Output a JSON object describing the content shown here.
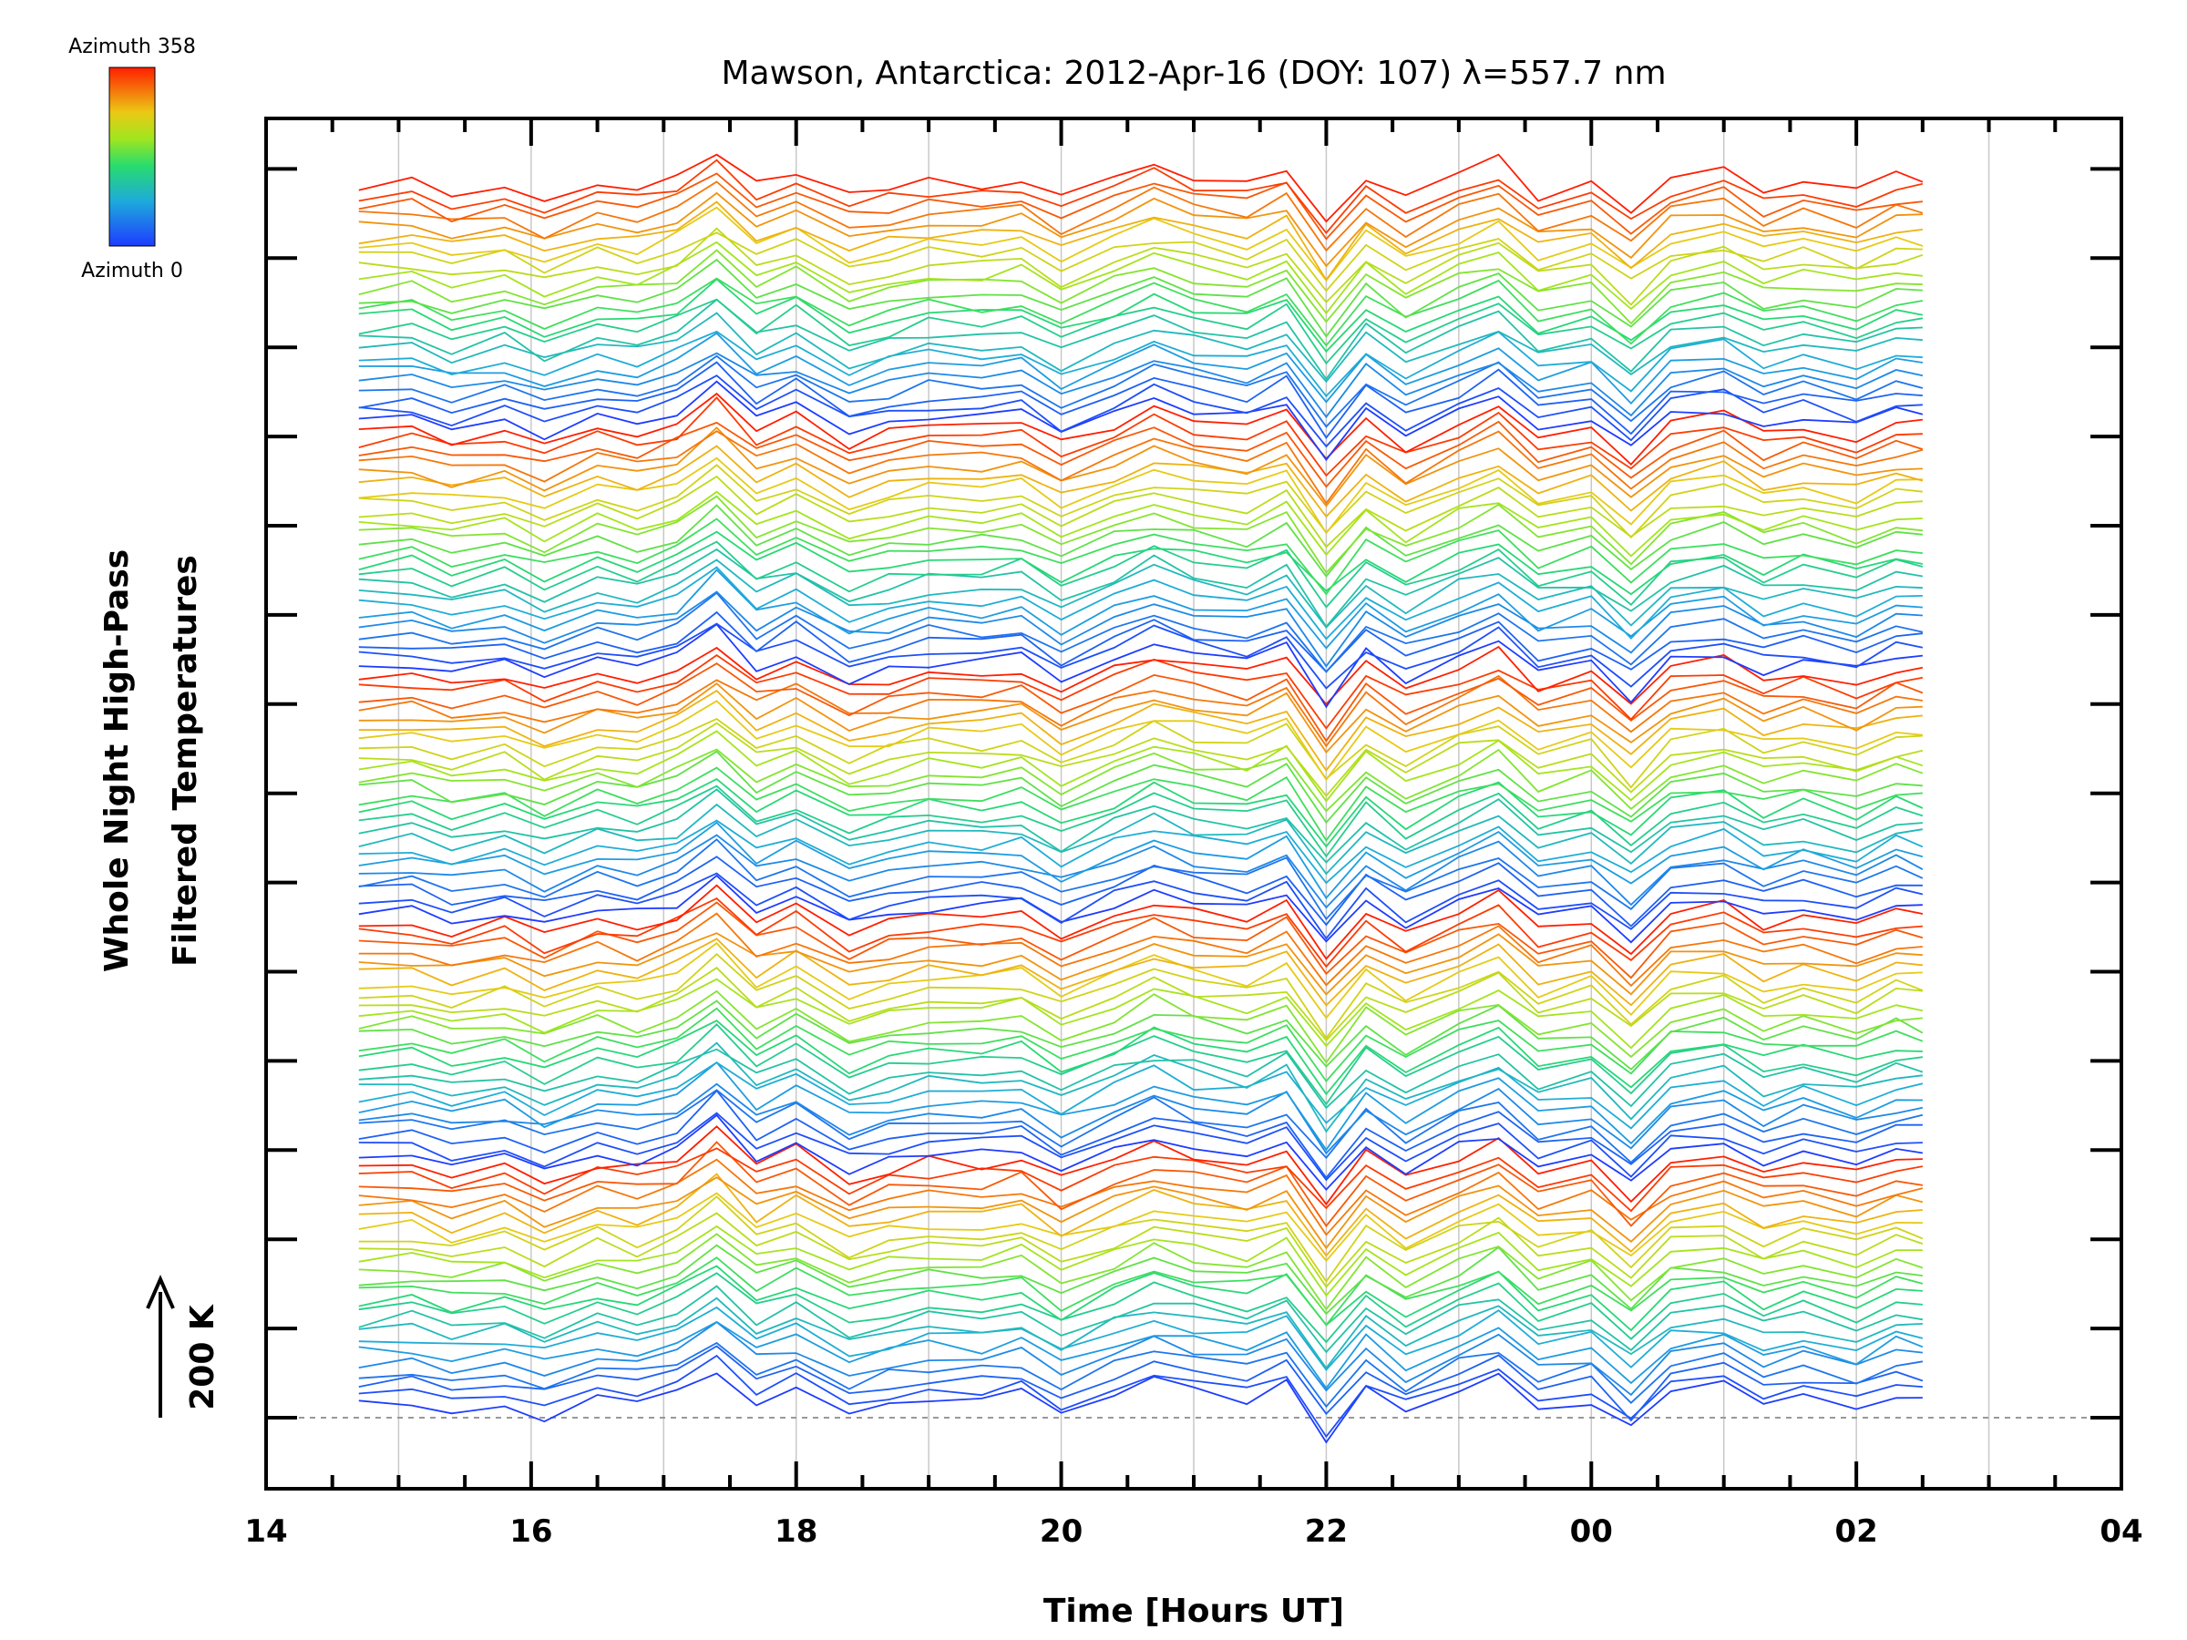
{
  "chart_data": {
    "type": "line",
    "title": "Mawson, Antarctica: 2012-Apr-16 (DOY: 107) λ=557.7 nm",
    "xlabel": "Time [Hours UT]",
    "ylabel_line1": "Whole Night High-Pass",
    "ylabel_line2": "Filtered Temperatures",
    "scale_label": "200 K",
    "x_ticks": [
      "14",
      "16",
      "18",
      "20",
      "22",
      "00",
      "02",
      "04"
    ],
    "xlim_hours_ut": [
      14,
      28
    ],
    "grid": true,
    "colorbar": {
      "top_label": "Azimuth 358",
      "bottom_label": "Azimuth 0"
    },
    "colors": {
      "azimuth_low": "#1e3cff",
      "azimuth_high": "#ff1e00",
      "frame": "#000000",
      "grid": "#c8c8c8"
    },
    "time_hours_ut": [
      14.7,
      15.1,
      15.4,
      15.8,
      16.1,
      16.5,
      16.8,
      17.1,
      17.4,
      17.7,
      18.0,
      18.4,
      18.7,
      19.0,
      19.4,
      19.7,
      20.0,
      20.4,
      20.7,
      21.0,
      21.4,
      21.7,
      22.0,
      22.3,
      22.6,
      23.0,
      23.3,
      23.6,
      24.0,
      24.3,
      24.6,
      25.0,
      25.3,
      25.6,
      26.0,
      26.3,
      26.5
    ],
    "stack_offset_k": 200,
    "series_order": "stacked from bottom to top; colour varies with zenith-ring azimuth 0 to 358"
  }
}
